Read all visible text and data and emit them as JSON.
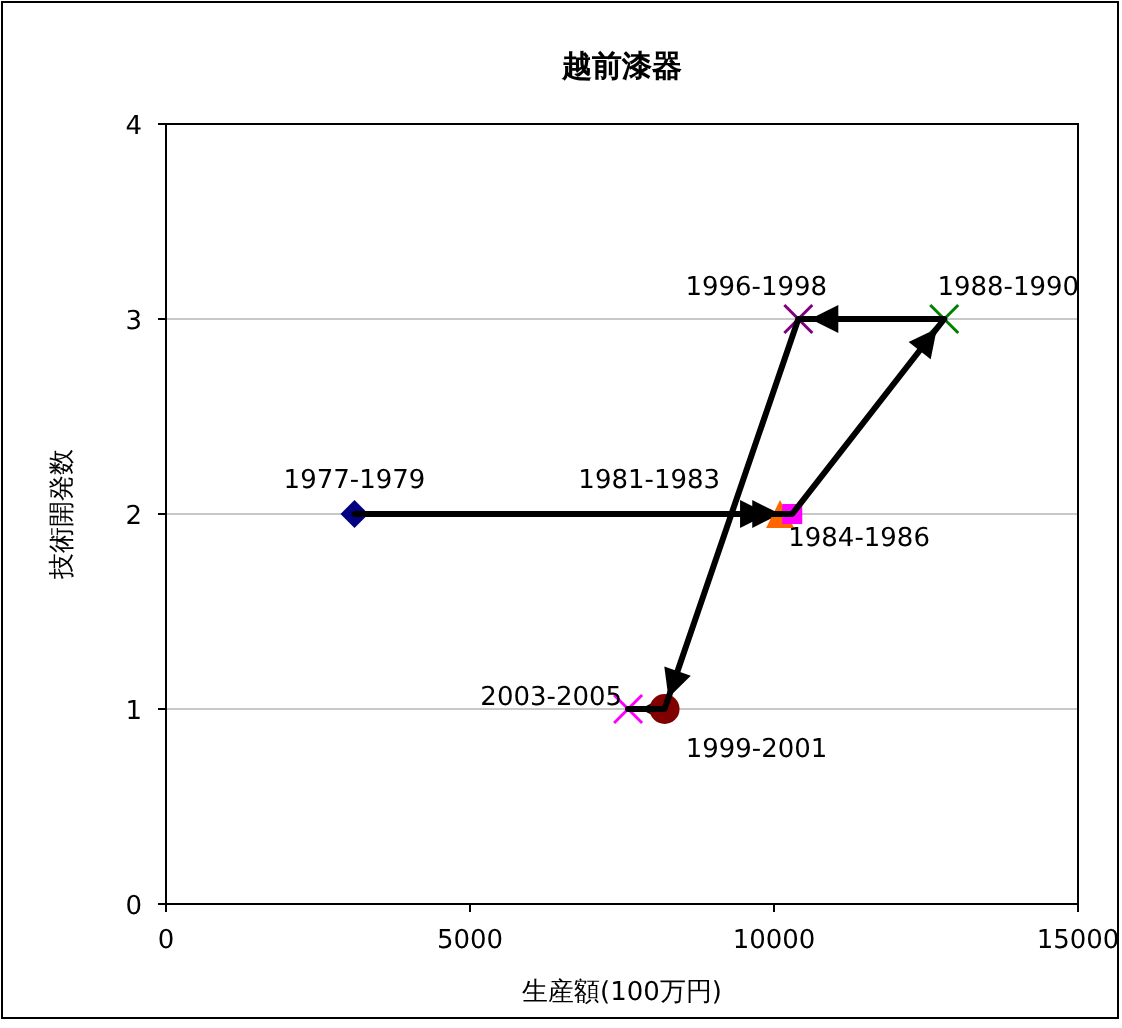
{
  "chart_data": {
    "type": "scatter",
    "title": "越前漆器",
    "xlabel": "生産額(100万円)",
    "ylabel": "技術開発数",
    "xlim": [
      0,
      15000
    ],
    "xticks": [
      0,
      5000,
      10000,
      15000
    ],
    "ylim": [
      0,
      4
    ],
    "yticks": [
      0,
      1,
      2,
      3,
      4
    ],
    "grid": "y",
    "series": [
      {
        "name": "1977-1979",
        "color": "#000080",
        "marker": "diamond",
        "x": [
          3100
        ],
        "values": [
          2
        ]
      },
      {
        "name": "1981-1983",
        "color": "#ff6600",
        "marker": "triangle",
        "x": [
          10100
        ],
        "values": [
          2
        ]
      },
      {
        "name": "1984-1986",
        "color": "#ff00ff",
        "marker": "square",
        "x": [
          10300
        ],
        "values": [
          2
        ]
      },
      {
        "name": "1988-1990",
        "color": "#008000",
        "marker": "cross",
        "x": [
          12800
        ],
        "values": [
          3
        ]
      },
      {
        "name": "1996-1998",
        "color": "#800080",
        "marker": "cross",
        "x": [
          10400
        ],
        "values": [
          3
        ]
      },
      {
        "name": "1999-2001",
        "color": "#800000",
        "marker": "circle",
        "x": [
          8200
        ],
        "values": [
          1
        ]
      },
      {
        "name": "2003-2005",
        "color": "#ff00ff",
        "marker": "cross",
        "x": [
          7600
        ],
        "values": [
          1
        ]
      },
      {
        "type": "line",
        "color": "#000000",
        "line_style": "solid",
        "marker": "none",
        "x": [
          3100,
          10100,
          10300,
          12800,
          10400,
          8200,
          7600
        ],
        "values": [
          2,
          2,
          2,
          3,
          3,
          1,
          1
        ]
      }
    ]
  }
}
